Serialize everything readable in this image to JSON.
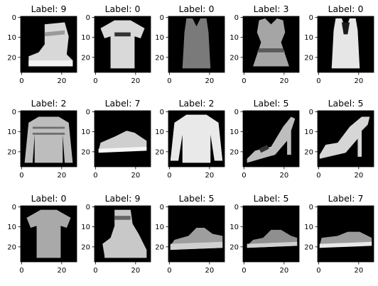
{
  "subplots": [
    {
      "title": "Label: 9",
      "item": "ankle-boot"
    },
    {
      "title": "Label: 0",
      "item": "tshirt"
    },
    {
      "title": "Label: 0",
      "item": "tank-top"
    },
    {
      "title": "Label: 3",
      "item": "dress"
    },
    {
      "title": "Label: 0",
      "item": "tank-top-light"
    },
    {
      "title": "Label: 2",
      "item": "sweater"
    },
    {
      "title": "Label: 7",
      "item": "sneaker"
    },
    {
      "title": "Label: 2",
      "item": "pullover"
    },
    {
      "title": "Label: 5",
      "item": "sandal-heel"
    },
    {
      "title": "Label: 5",
      "item": "sandal-heel-2"
    },
    {
      "title": "Label: 0",
      "item": "tshirt-grey"
    },
    {
      "title": "Label: 9",
      "item": "ankle-boot-2"
    },
    {
      "title": "Label: 5",
      "item": "sandal-flat"
    },
    {
      "title": "Label: 5",
      "item": "sandal-flat-2"
    },
    {
      "title": "Label: 7",
      "item": "sneaker-2"
    }
  ],
  "yticks": [
    "0",
    "10",
    "20"
  ],
  "xticks": [
    "0",
    "20"
  ],
  "colors": {
    "image_bg": "#000000",
    "garment_light": "#cfcfcf",
    "garment_mid": "#8a8a8a",
    "axis": "#000000"
  }
}
